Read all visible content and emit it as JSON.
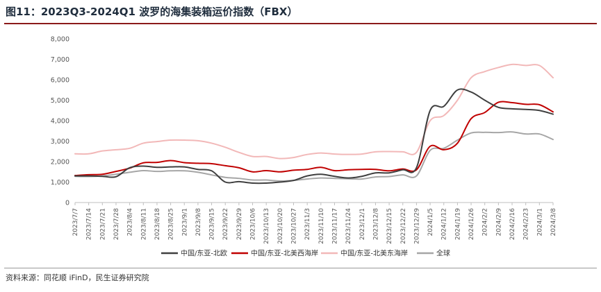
{
  "title": "图11：2023Q3-2024Q1 波罗的海集装箱运价指数（FBX）",
  "source": "资料来源：同花顺 iFinD，民生证券研究院",
  "chart_data": {
    "type": "line",
    "ylim": [
      0,
      8000
    ],
    "yticks": [
      "0",
      "1,000",
      "2,000",
      "3,000",
      "4,000",
      "5,000",
      "6,000",
      "7,000",
      "8,000"
    ],
    "ytick_values": [
      0,
      1000,
      2000,
      3000,
      4000,
      5000,
      6000,
      7000,
      8000
    ],
    "categories": [
      "2023/7/7",
      "2023/7/14",
      "2023/7/21",
      "2023/7/28",
      "2023/8/4",
      "2023/8/11",
      "2023/8/18",
      "2023/8/25",
      "2023/9/1",
      "2023/9/8",
      "2023/9/15",
      "2023/9/22",
      "2023/9/29",
      "2023/10/6",
      "2023/10/13",
      "2023/10/20",
      "2023/10/27",
      "2023/11/3",
      "2023/11/10",
      "2023/11/17",
      "2023/11/24",
      "2023/12/1",
      "2023/12/8",
      "2023/12/15",
      "2023/12/22",
      "2023/12/29",
      "2024/1/5",
      "2024/1/12",
      "2024/1/19",
      "2024/1/26",
      "2024/2/2",
      "2024/2/9",
      "2024/2/16",
      "2024/2/23",
      "2024/3/1",
      "2024/3/8"
    ],
    "grid": false,
    "legend_position": "bottom",
    "series": [
      {
        "name": "中国/东亚-北欧",
        "color": "#3f3f3f",
        "values": [
          1300,
          1300,
          1280,
          1260,
          1700,
          1780,
          1720,
          1740,
          1740,
          1620,
          1550,
          1000,
          1020,
          950,
          950,
          1000,
          1080,
          1300,
          1380,
          1280,
          1200,
          1280,
          1450,
          1450,
          1600,
          1700,
          4500,
          4700,
          5500,
          5400,
          5000,
          4650,
          4580,
          4550,
          4500,
          4320
        ]
      },
      {
        "name": "中国/东亚-北美西海岸",
        "color": "#c00000",
        "values": [
          1320,
          1360,
          1380,
          1520,
          1680,
          1940,
          1960,
          2050,
          1950,
          1920,
          1900,
          1800,
          1700,
          1500,
          1560,
          1500,
          1580,
          1620,
          1720,
          1560,
          1600,
          1620,
          1620,
          1550,
          1640,
          1600,
          2750,
          2580,
          2900,
          4100,
          4400,
          4900,
          4880,
          4800,
          4780,
          4430
        ]
      },
      {
        "name": "中国/东亚-北美东海岸",
        "color": "#f2b8b8",
        "values": [
          2380,
          2380,
          2520,
          2580,
          2650,
          2900,
          2980,
          3050,
          3050,
          3020,
          2900,
          2700,
          2450,
          2250,
          2250,
          2150,
          2200,
          2350,
          2420,
          2370,
          2350,
          2370,
          2480,
          2490,
          2480,
          2450,
          4000,
          4250,
          5000,
          6100,
          6400,
          6600,
          6750,
          6700,
          6700,
          6100
        ]
      },
      {
        "name": "全球",
        "color": "#a6a6a6",
        "values": [
          1280,
          1270,
          1300,
          1380,
          1480,
          1560,
          1520,
          1550,
          1550,
          1480,
          1350,
          1230,
          1180,
          1100,
          1100,
          1050,
          1080,
          1150,
          1200,
          1180,
          1160,
          1150,
          1250,
          1270,
          1350,
          1300,
          2550,
          2650,
          3050,
          3400,
          3430,
          3420,
          3450,
          3350,
          3350,
          3080
        ]
      }
    ]
  }
}
